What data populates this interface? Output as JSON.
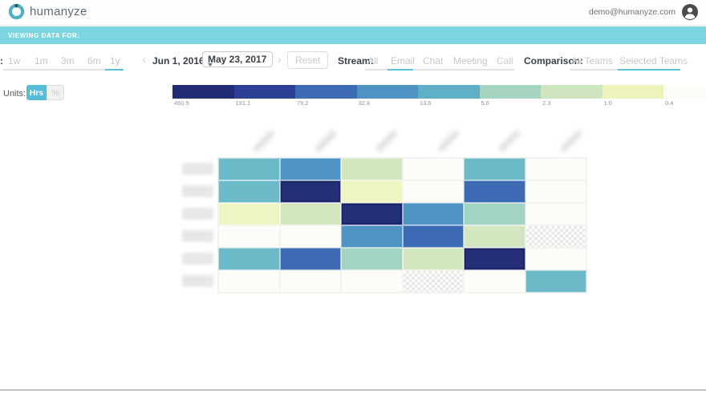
{
  "header": {
    "brand": "humanyze",
    "user_email": "demo@humanyze.com"
  },
  "banner": {
    "label": "VIEWING DATA FOR:"
  },
  "toolbar": {
    "range_label_fragment": ":",
    "range_options": [
      {
        "label": "1w",
        "selected": false
      },
      {
        "label": "1m",
        "selected": false
      },
      {
        "label": "3m",
        "selected": false
      },
      {
        "label": "6m",
        "selected": false
      },
      {
        "label": "1y",
        "selected": true
      }
    ],
    "date_start": "Jun 1, 2016 -",
    "date_end_selected": "May 23, 2017",
    "prev_icon": "‹",
    "next_icon": "›",
    "reset_label": "Reset",
    "stream_label": "Stream:",
    "stream_options": [
      {
        "label": "All",
        "selected": false
      },
      {
        "label": "Email",
        "selected": true
      },
      {
        "label": "Chat",
        "selected": false
      },
      {
        "label": "Meeting",
        "selected": false
      },
      {
        "label": "Call",
        "selected": false
      }
    ],
    "comparison_label": "Comparison:",
    "comparison_options": [
      {
        "label": "All Teams",
        "selected": false
      },
      {
        "label": "Selected Teams",
        "selected": true
      }
    ]
  },
  "units": {
    "label": "Units:",
    "options": [
      {
        "label": "Hrs",
        "selected": true
      },
      {
        "label": "%",
        "selected": false
      }
    ]
  },
  "colors": {
    "accent_teal": "#5bc2d6",
    "banner_teal": "#7ed5e2"
  },
  "chart_data": {
    "type": "heatmap",
    "title": "",
    "units_selected": "Hrs",
    "legend": {
      "position": "top",
      "tick_labels": [
        "460.9",
        "191.1",
        "79.2",
        "32.8",
        "13.6",
        "5.6",
        "2.3",
        "1.0",
        "0.4"
      ],
      "colors": [
        "#222d76",
        "#2d3f95",
        "#3e6cb4",
        "#4f93c4",
        "#5fb0c6",
        "#a5d4c1",
        "#cfe5c0",
        "#eef3bc",
        "#fcfdf6"
      ]
    },
    "row_labels_blurred": true,
    "col_labels_blurred": true,
    "row_labels": [
      "",
      "",
      "",
      "",
      "",
      ""
    ],
    "col_labels": [
      "",
      "",
      "",
      "",
      "",
      ""
    ],
    "palette": {
      "navy": "#242f78",
      "strongblue": "#3e6cb4",
      "medblue": "#4f93c4",
      "teal": "#6cbac7",
      "seafoam": "#a3d3c2",
      "palegreen": "#d4e6c0",
      "paleyellow": "#eff4c3",
      "white": "#fcfdf8",
      "nodata": "checker"
    },
    "cells": [
      [
        "teal",
        "medblue",
        "palegreen",
        "white",
        "teal",
        "white"
      ],
      [
        "teal",
        "navy",
        "paleyellow",
        "white",
        "strongblue",
        "white"
      ],
      [
        "paleyellow",
        "palegreen",
        "navy",
        "medblue",
        "seafoam",
        "white"
      ],
      [
        "white",
        "white",
        "medblue",
        "strongblue",
        "palegreen",
        "nodata"
      ],
      [
        "teal",
        "strongblue",
        "seafoam",
        "palegreen",
        "navy",
        "white"
      ],
      [
        "white",
        "white",
        "white",
        "nodata",
        "white",
        "teal"
      ]
    ]
  }
}
